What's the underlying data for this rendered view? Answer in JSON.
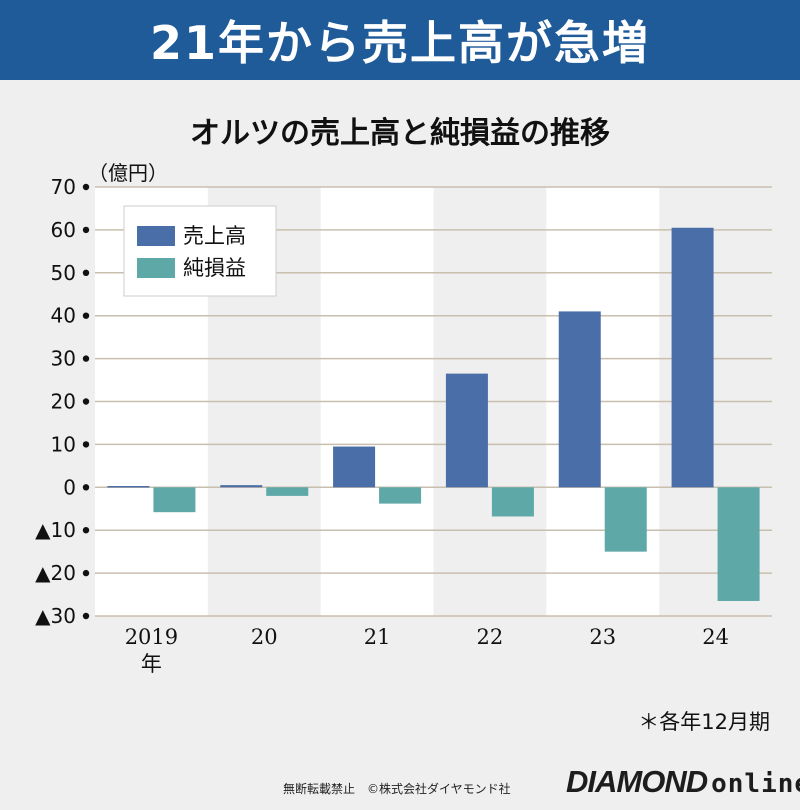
{
  "banner": {
    "title": "21年から売上高が急増"
  },
  "colors": {
    "banner": "#1f5a99",
    "sales": "#4a6ea8",
    "net": "#5ea8a8",
    "grid": "#c9bfae",
    "band": "#ffffff"
  },
  "chart_data": {
    "type": "bar",
    "title": "オルツの売上高と純損益の推移",
    "unit_label": "（億円）",
    "categories": [
      "2019",
      "20",
      "21",
      "22",
      "23",
      "24"
    ],
    "category_suffix": "年",
    "series": [
      {
        "name": "売上高",
        "values": [
          0.3,
          0.5,
          9.5,
          26.5,
          41,
          60.5
        ]
      },
      {
        "name": "純損益",
        "values": [
          -5.8,
          -2,
          -3.8,
          -6.8,
          -15,
          -26.5
        ]
      }
    ],
    "ylim": [
      -30,
      70
    ],
    "yticks": [
      70,
      60,
      50,
      40,
      30,
      20,
      10,
      0,
      -10,
      -20,
      -30
    ],
    "ytick_labels": [
      "70",
      "60",
      "50",
      "40",
      "30",
      "20",
      "10",
      "0",
      "▲10",
      "▲20",
      "▲30"
    ],
    "grid": true,
    "legend_position": "top-left"
  },
  "footnote": "＊各年12月期",
  "copyright": "無断転載禁止　©株式会社ダイヤモンド社",
  "logo": {
    "brand": "DIAMOND",
    "suffix": "online"
  }
}
